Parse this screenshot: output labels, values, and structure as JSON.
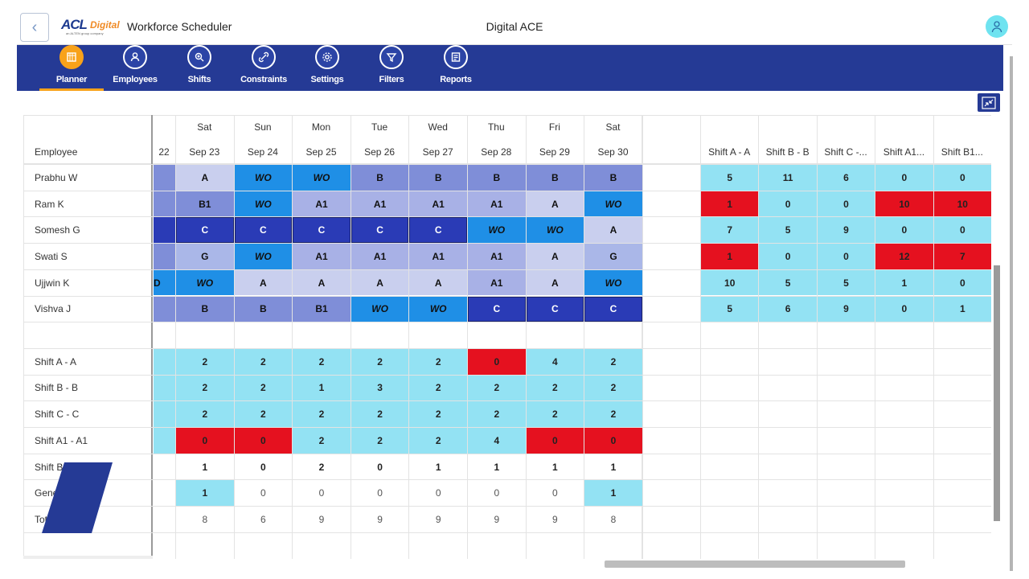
{
  "header": {
    "logo_text": "ACL",
    "logo_suffix": "Digital",
    "logo_sub": "an ALTEN group company",
    "app_title": "Workforce Scheduler",
    "center_title": "Digital ACE"
  },
  "nav": [
    {
      "label": "Planner",
      "icon": "planner-icon",
      "active": true
    },
    {
      "label": "Employees",
      "icon": "employee-icon",
      "active": false
    },
    {
      "label": "Shifts",
      "icon": "shifts-icon",
      "active": false
    },
    {
      "label": "Constraints",
      "icon": "link-icon",
      "active": false
    },
    {
      "label": "Settings",
      "icon": "gear-icon",
      "active": false
    },
    {
      "label": "Filters",
      "icon": "filter-icon",
      "active": false
    },
    {
      "label": "Reports",
      "icon": "report-icon",
      "active": false
    }
  ],
  "grid": {
    "employee_header": "Employee",
    "partial_date": "22",
    "days": [
      {
        "dow": "Sat",
        "date": "Sep 23"
      },
      {
        "dow": "Sun",
        "date": "Sep 24"
      },
      {
        "dow": "Mon",
        "date": "Sep 25"
      },
      {
        "dow": "Tue",
        "date": "Sep 26"
      },
      {
        "dow": "Wed",
        "date": "Sep 27"
      },
      {
        "dow": "Thu",
        "date": "Sep 28"
      },
      {
        "dow": "Fri",
        "date": "Sep 29"
      },
      {
        "dow": "Sat",
        "date": "Sep 30"
      }
    ],
    "employees": [
      {
        "name": "Prabhu W",
        "partial": "",
        "cells": [
          "A",
          "WO",
          "WO",
          "B",
          "B",
          "B",
          "B",
          "B"
        ]
      },
      {
        "name": "Ram K",
        "partial": "",
        "cells": [
          "B1",
          "WO",
          "A1",
          "A1",
          "A1",
          "A1",
          "A",
          "WO"
        ]
      },
      {
        "name": "Somesh G",
        "partial": "",
        "cells": [
          "C",
          "C",
          "C",
          "C",
          "C",
          "WO",
          "WO",
          "A"
        ]
      },
      {
        "name": "Swati S",
        "partial": "",
        "cells": [
          "G",
          "WO",
          "A1",
          "A1",
          "A1",
          "A1",
          "A",
          "G"
        ]
      },
      {
        "name": "Ujjwin K",
        "partial": "D",
        "cells": [
          "WO",
          "A",
          "A",
          "A",
          "A",
          "A1",
          "A",
          "WO"
        ]
      },
      {
        "name": "Vishva J",
        "partial": "",
        "cells": [
          "B",
          "B",
          "B1",
          "WO",
          "WO",
          "C",
          "C",
          "C"
        ]
      }
    ],
    "summary_rows": [
      {
        "name": "Shift A - A",
        "cells": [
          "2",
          "2",
          "2",
          "2",
          "2",
          "0",
          "4",
          "2"
        ],
        "red": [
          5
        ],
        "colored": true
      },
      {
        "name": "Shift B - B",
        "cells": [
          "2",
          "2",
          "1",
          "3",
          "2",
          "2",
          "2",
          "2"
        ],
        "red": [],
        "colored": true
      },
      {
        "name": "Shift C - C",
        "cells": [
          "2",
          "2",
          "2",
          "2",
          "2",
          "2",
          "2",
          "2"
        ],
        "red": [],
        "colored": true
      },
      {
        "name": "Shift A1 - A1",
        "cells": [
          "0",
          "0",
          "2",
          "2",
          "2",
          "4",
          "0",
          "0"
        ],
        "red": [
          0,
          1,
          6,
          7
        ],
        "colored": true
      },
      {
        "name": "Shift B1 - B1",
        "cells": [
          "1",
          "0",
          "2",
          "0",
          "1",
          "1",
          "1",
          "1"
        ],
        "red": [],
        "colored": false,
        "bold": true
      },
      {
        "name": "General - G",
        "cells": [
          "1",
          "0",
          "0",
          "0",
          "0",
          "0",
          "0",
          "1"
        ],
        "red": [],
        "colored": false,
        "highlight": [
          0,
          7
        ]
      },
      {
        "name": "Total",
        "cells": [
          "8",
          "6",
          "9",
          "9",
          "9",
          "9",
          "9",
          "8"
        ],
        "red": [],
        "colored": false
      }
    ],
    "stats_headers": [
      "Shift A - A",
      "Shift B - B",
      "Shift C -...",
      "Shift A1...",
      "Shift B1..."
    ],
    "stats": [
      [
        "5",
        "11",
        "6",
        "0",
        "0"
      ],
      [
        "1",
        "0",
        "0",
        "10",
        "10"
      ],
      [
        "7",
        "5",
        "9",
        "0",
        "0"
      ],
      [
        "1",
        "0",
        "0",
        "12",
        "7"
      ],
      [
        "10",
        "5",
        "5",
        "1",
        "0"
      ],
      [
        "5",
        "6",
        "9",
        "0",
        "1"
      ]
    ],
    "stats_red": [
      [],
      [
        0,
        3,
        4
      ],
      [],
      [
        0,
        3,
        4
      ],
      [],
      []
    ]
  },
  "colors": {
    "nav_bg": "#253a95",
    "accent": "#f8a21a",
    "A": "#c9cfee",
    "B": "#7f8ed8",
    "B1": "#7f8ed8",
    "A1": "#a8b1e6",
    "C": "#2a3bb6",
    "G": "#aab7e8",
    "WO": "#1f8fe6",
    "summary": "#93e2f3",
    "red": "#e5111f"
  }
}
